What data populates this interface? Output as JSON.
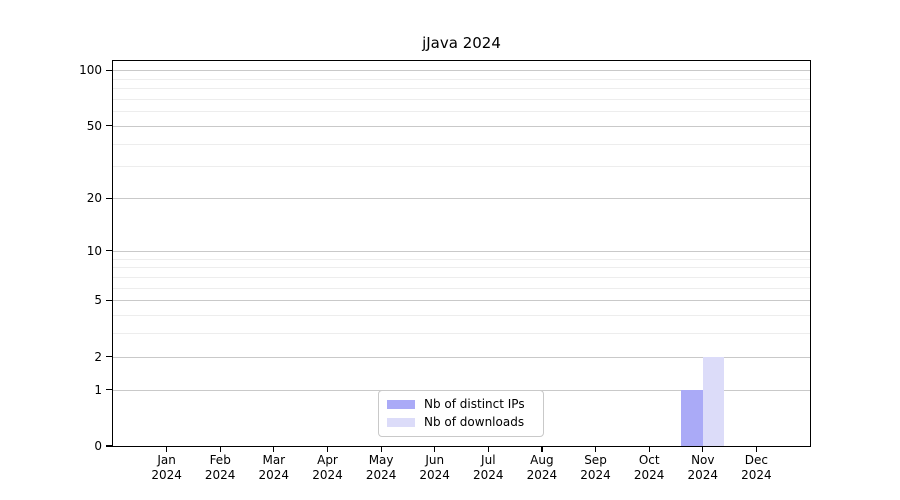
{
  "chart_data": {
    "type": "bar",
    "title": "jJava 2024",
    "categories": [
      "Jan 2024",
      "Feb 2024",
      "Mar 2024",
      "Apr 2024",
      "May 2024",
      "Jun 2024",
      "Jul 2024",
      "Aug 2024",
      "Sep 2024",
      "Oct 2024",
      "Nov 2024",
      "Dec 2024"
    ],
    "series": [
      {
        "name": "Nb of distinct IPs",
        "color": "#aaaaf7",
        "values": [
          0,
          0,
          0,
          0,
          0,
          0,
          0,
          0,
          0,
          0,
          1,
          0
        ]
      },
      {
        "name": "Nb of downloads",
        "color": "#dcdcf9",
        "values": [
          0,
          0,
          0,
          0,
          0,
          0,
          0,
          0,
          0,
          0,
          2,
          0
        ]
      }
    ],
    "xlabel": "",
    "ylabel": "",
    "y_scale": "log10(1+y)",
    "y_major_ticks": [
      0,
      1,
      2,
      5,
      10,
      20,
      50,
      100
    ],
    "y_minor_ticks": [
      3,
      4,
      6,
      7,
      8,
      9,
      30,
      40,
      60,
      70,
      80,
      90
    ],
    "ylim": [
      0,
      112
    ],
    "grid": true,
    "legend_position": "lower center",
    "colors": {
      "major_grid": "#c9c9c9",
      "minor_grid": "#ededed",
      "axis": "#000000",
      "text": "#000000",
      "background": "#ffffff"
    }
  }
}
